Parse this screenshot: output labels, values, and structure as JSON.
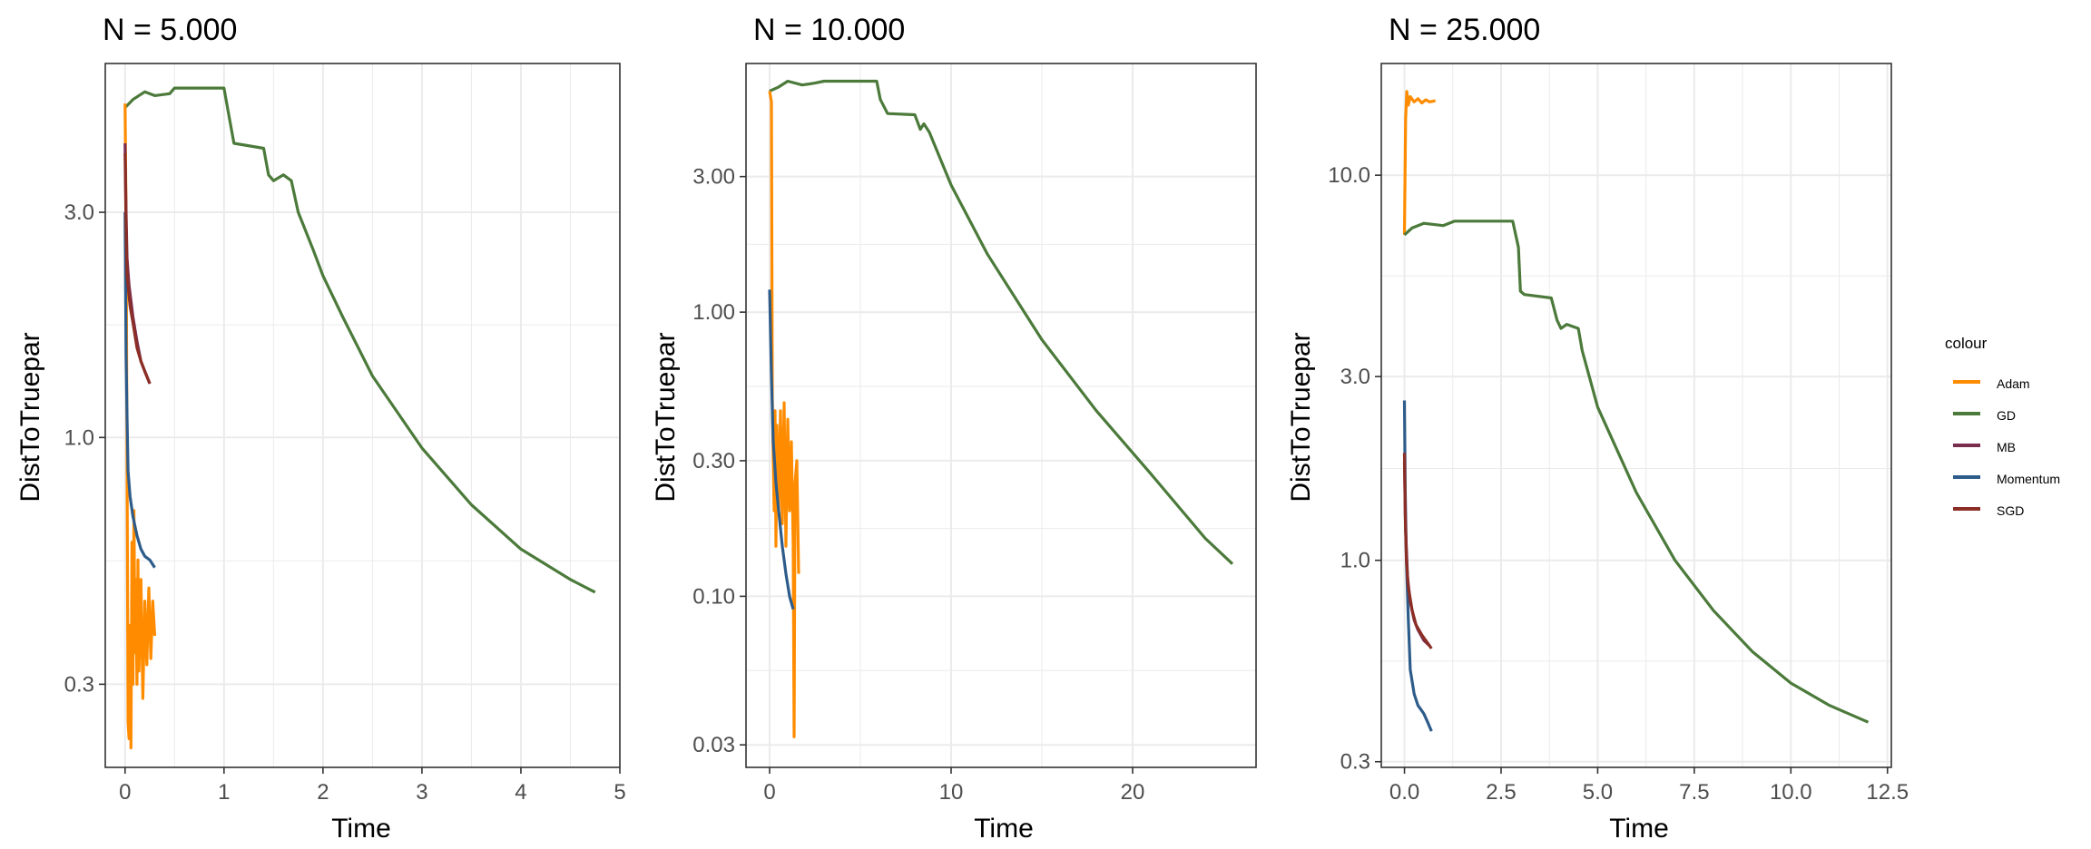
{
  "colors": {
    "Adam": "#FF8C00",
    "GD": "#4B7A3A",
    "MB": "#7B2D4E",
    "Momentum": "#2E5C8A",
    "SGD": "#8B2E25",
    "panel_border": "#333333",
    "grid": "#EBEBEB",
    "text": "#000000",
    "tick_text": "#4D4D4D"
  },
  "legend": {
    "title": "colour",
    "entries": [
      "Adam",
      "GD",
      "MB",
      "Momentum",
      "SGD"
    ]
  },
  "chart_data": [
    {
      "type": "line",
      "title": "N = 5.000",
      "xlabel": "Time",
      "ylabel": "DistToTruepar",
      "y_scale": "log10",
      "xlim": [
        -0.2,
        5.0
      ],
      "ylim": [
        0.2,
        6.2
      ],
      "x_ticks": [
        0,
        1,
        2,
        3,
        4,
        5
      ],
      "x_tick_labels": [
        "0",
        "1",
        "2",
        "3",
        "4",
        "5"
      ],
      "y_ticks": [
        0.3,
        1.0,
        3.0
      ],
      "y_tick_labels": [
        "0.3",
        "1.0",
        "3.0"
      ],
      "grid": true,
      "series": [
        {
          "name": "GD",
          "points": [
            [
              0,
              5.0
            ],
            [
              0.08,
              5.2
            ],
            [
              0.2,
              5.4
            ],
            [
              0.3,
              5.3
            ],
            [
              0.45,
              5.35
            ],
            [
              0.5,
              5.5
            ],
            [
              1.0,
              5.5
            ],
            [
              1.05,
              4.8
            ],
            [
              1.1,
              4.2
            ],
            [
              1.4,
              4.1
            ],
            [
              1.45,
              3.6
            ],
            [
              1.5,
              3.5
            ],
            [
              1.6,
              3.6
            ],
            [
              1.68,
              3.5
            ],
            [
              1.75,
              3.0
            ],
            [
              1.9,
              2.5
            ],
            [
              2.0,
              2.2
            ],
            [
              2.2,
              1.8
            ],
            [
              2.5,
              1.35
            ],
            [
              3.0,
              0.95
            ],
            [
              3.5,
              0.72
            ],
            [
              4.0,
              0.58
            ],
            [
              4.5,
              0.5
            ],
            [
              4.75,
              0.47
            ]
          ]
        },
        {
          "name": "Adam",
          "points": [
            [
              0,
              5.1
            ],
            [
              0.01,
              3.0
            ],
            [
              0.02,
              0.9
            ],
            [
              0.03,
              0.25
            ],
            [
              0.04,
              0.23
            ],
            [
              0.05,
              0.4
            ],
            [
              0.06,
              0.22
            ],
            [
              0.07,
              0.6
            ],
            [
              0.08,
              0.3
            ],
            [
              0.09,
              0.7
            ],
            [
              0.1,
              0.35
            ],
            [
              0.11,
              0.5
            ],
            [
              0.12,
              0.3
            ],
            [
              0.13,
              0.55
            ],
            [
              0.14,
              0.32
            ],
            [
              0.16,
              0.5
            ],
            [
              0.18,
              0.28
            ],
            [
              0.2,
              0.45
            ],
            [
              0.22,
              0.33
            ],
            [
              0.24,
              0.48
            ],
            [
              0.26,
              0.34
            ],
            [
              0.28,
              0.45
            ],
            [
              0.3,
              0.38
            ]
          ]
        },
        {
          "name": "Momentum",
          "points": [
            [
              0,
              3.0
            ],
            [
              0.01,
              1.5
            ],
            [
              0.02,
              1.1
            ],
            [
              0.03,
              0.85
            ],
            [
              0.05,
              0.75
            ],
            [
              0.08,
              0.68
            ],
            [
              0.12,
              0.62
            ],
            [
              0.16,
              0.58
            ],
            [
              0.2,
              0.56
            ],
            [
              0.25,
              0.55
            ],
            [
              0.3,
              0.53
            ]
          ]
        },
        {
          "name": "MB",
          "points": [
            [
              0,
              4.2
            ],
            [
              0.01,
              3.0
            ],
            [
              0.02,
              2.4
            ],
            [
              0.04,
              2.1
            ],
            [
              0.08,
              1.8
            ],
            [
              0.12,
              1.6
            ],
            [
              0.16,
              1.45
            ],
            [
              0.2,
              1.38
            ],
            [
              0.25,
              1.3
            ]
          ]
        },
        {
          "name": "SGD",
          "points": [
            [
              0,
              4.0
            ],
            [
              0.01,
              2.8
            ],
            [
              0.02,
              2.2
            ],
            [
              0.05,
              1.9
            ],
            [
              0.08,
              1.75
            ],
            [
              0.12,
              1.55
            ],
            [
              0.16,
              1.45
            ],
            [
              0.2,
              1.38
            ],
            [
              0.25,
              1.3
            ]
          ]
        }
      ]
    },
    {
      "type": "line",
      "title": "N = 10.000",
      "xlabel": "Time",
      "ylabel": "DistToTruepar",
      "y_scale": "log10",
      "xlim": [
        -1.3,
        26.8
      ],
      "ylim": [
        0.025,
        7.5
      ],
      "x_ticks": [
        0,
        10,
        20
      ],
      "x_tick_labels": [
        "0",
        "10",
        "20"
      ],
      "y_ticks": [
        0.03,
        0.1,
        0.3,
        1.0,
        3.0
      ],
      "y_tick_labels": [
        "0.03",
        "0.10",
        "0.30",
        "1.00",
        "3.00"
      ],
      "grid": true,
      "series": [
        {
          "name": "GD",
          "points": [
            [
              0,
              6.0
            ],
            [
              0.5,
              6.2
            ],
            [
              1.0,
              6.5
            ],
            [
              1.8,
              6.3
            ],
            [
              2.5,
              6.4
            ],
            [
              3.0,
              6.5
            ],
            [
              5.9,
              6.5
            ],
            [
              6.1,
              5.6
            ],
            [
              6.5,
              5.0
            ],
            [
              8.0,
              4.95
            ],
            [
              8.3,
              4.4
            ],
            [
              8.5,
              4.6
            ],
            [
              8.8,
              4.3
            ],
            [
              9.0,
              4.0
            ],
            [
              10.0,
              2.8
            ],
            [
              12.0,
              1.6
            ],
            [
              15.0,
              0.8
            ],
            [
              18.0,
              0.45
            ],
            [
              21.0,
              0.27
            ],
            [
              24.0,
              0.16
            ],
            [
              25.5,
              0.13
            ]
          ]
        },
        {
          "name": "Adam",
          "points": [
            [
              0,
              6.0
            ],
            [
              0.1,
              5.5
            ],
            [
              0.15,
              0.5
            ],
            [
              0.2,
              0.3
            ],
            [
              0.25,
              0.2
            ],
            [
              0.3,
              0.45
            ],
            [
              0.35,
              0.15
            ],
            [
              0.4,
              0.4
            ],
            [
              0.5,
              0.2
            ],
            [
              0.6,
              0.45
            ],
            [
              0.7,
              0.18
            ],
            [
              0.8,
              0.48
            ],
            [
              0.9,
              0.15
            ],
            [
              1.0,
              0.42
            ],
            [
              1.1,
              0.2
            ],
            [
              1.2,
              0.35
            ],
            [
              1.3,
              0.15
            ],
            [
              1.35,
              0.032
            ],
            [
              1.4,
              0.25
            ],
            [
              1.5,
              0.3
            ],
            [
              1.6,
              0.12
            ]
          ]
        },
        {
          "name": "Momentum",
          "points": [
            [
              0,
              1.2
            ],
            [
              0.1,
              0.6
            ],
            [
              0.2,
              0.35
            ],
            [
              0.35,
              0.25
            ],
            [
              0.5,
              0.2
            ],
            [
              0.7,
              0.15
            ],
            [
              0.9,
              0.12
            ],
            [
              1.1,
              0.1
            ],
            [
              1.3,
              0.09
            ]
          ]
        }
      ]
    },
    {
      "type": "line",
      "title": "N = 25.000",
      "xlabel": "Time",
      "ylabel": "DistToTruepar",
      "y_scale": "log10",
      "xlim": [
        -0.6,
        12.6
      ],
      "ylim": [
        0.29,
        19.5
      ],
      "x_ticks": [
        0,
        2.5,
        5,
        7.5,
        10,
        12.5
      ],
      "x_tick_labels": [
        "0.0",
        "2.5",
        "5.0",
        "7.5",
        "10.0",
        "12.5"
      ],
      "y_ticks": [
        0.3,
        1.0,
        3.0,
        10.0
      ],
      "y_tick_labels": [
        "0.3",
        "1.0",
        "3.0",
        "10.0"
      ],
      "grid": true,
      "series": [
        {
          "name": "Adam",
          "points": [
            [
              0,
              7.0
            ],
            [
              0.03,
              14.0
            ],
            [
              0.06,
              16.5
            ],
            [
              0.1,
              15.2
            ],
            [
              0.15,
              16.0
            ],
            [
              0.25,
              15.5
            ],
            [
              0.35,
              15.8
            ],
            [
              0.45,
              15.4
            ],
            [
              0.55,
              15.7
            ],
            [
              0.65,
              15.5
            ],
            [
              0.8,
              15.6
            ]
          ]
        },
        {
          "name": "GD",
          "points": [
            [
              0,
              7.0
            ],
            [
              0.2,
              7.3
            ],
            [
              0.5,
              7.5
            ],
            [
              1.0,
              7.4
            ],
            [
              1.3,
              7.6
            ],
            [
              2.8,
              7.6
            ],
            [
              2.95,
              6.5
            ],
            [
              3.0,
              5.0
            ],
            [
              3.1,
              4.9
            ],
            [
              3.8,
              4.8
            ],
            [
              3.95,
              4.2
            ],
            [
              4.05,
              4.0
            ],
            [
              4.2,
              4.1
            ],
            [
              4.5,
              4.0
            ],
            [
              4.6,
              3.5
            ],
            [
              5.0,
              2.5
            ],
            [
              6.0,
              1.5
            ],
            [
              7.0,
              1.0
            ],
            [
              8.0,
              0.74
            ],
            [
              9.0,
              0.58
            ],
            [
              10.0,
              0.48
            ],
            [
              11.0,
              0.42
            ],
            [
              12.0,
              0.38
            ]
          ]
        },
        {
          "name": "Momentum",
          "points": [
            [
              0,
              2.6
            ],
            [
              0.02,
              1.5
            ],
            [
              0.05,
              1.0
            ],
            [
              0.1,
              0.7
            ],
            [
              0.15,
              0.52
            ],
            [
              0.25,
              0.45
            ],
            [
              0.35,
              0.42
            ],
            [
              0.5,
              0.4
            ],
            [
              0.6,
              0.38
            ],
            [
              0.7,
              0.36
            ]
          ]
        },
        {
          "name": "MB",
          "points": [
            [
              0,
              1.8
            ],
            [
              0.03,
              1.2
            ],
            [
              0.08,
              0.9
            ],
            [
              0.15,
              0.78
            ],
            [
              0.25,
              0.7
            ],
            [
              0.35,
              0.66
            ],
            [
              0.5,
              0.62
            ],
            [
              0.65,
              0.6
            ]
          ]
        },
        {
          "name": "SGD",
          "points": [
            [
              0,
              1.9
            ],
            [
              0.02,
              1.3
            ],
            [
              0.05,
              1.0
            ],
            [
              0.1,
              0.85
            ],
            [
              0.2,
              0.74
            ],
            [
              0.3,
              0.68
            ],
            [
              0.45,
              0.64
            ],
            [
              0.6,
              0.61
            ],
            [
              0.7,
              0.59
            ]
          ]
        }
      ]
    }
  ]
}
